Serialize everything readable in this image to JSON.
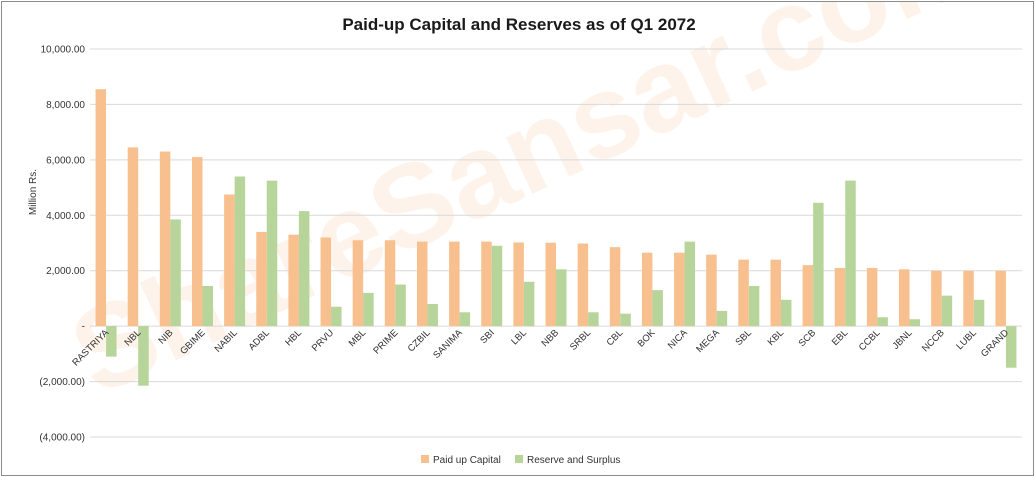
{
  "chart_data": {
    "type": "bar",
    "title": "Paid-up Capital and Reserves  as of Q1 2072",
    "ylabel": "Million Rs.",
    "xlabel": "",
    "ylim": [
      -4000,
      10000
    ],
    "yticks": [
      10000,
      8000,
      6000,
      4000,
      2000,
      0,
      -2000,
      -4000
    ],
    "ytick_labels": [
      "10,000.00",
      "8,000.00",
      "6,000.00",
      "4,000.00",
      "2,000.00",
      "-",
      "(2,000.00)",
      "(4,000.00)"
    ],
    "grid": true,
    "legend_position": "bottom",
    "categories": [
      "RASTRIYA",
      "NBL",
      "NIB",
      "GBIME",
      "NABIL",
      "ADBL",
      "HBL",
      "PRVU",
      "MBL",
      "PRIME",
      "CZBIL",
      "SANIMA",
      "SBI",
      "LBL",
      "NBB",
      "SRBL",
      "CBL",
      "BOK",
      "NICA",
      "MEGA",
      "SBL",
      "KBL",
      "SCB",
      "EBL",
      "CCBL",
      "JBNL",
      "NCCB",
      "LUBL",
      "GRAND"
    ],
    "series": [
      {
        "name": "Paid up Capital",
        "color": "#f8c08e",
        "values": [
          8550,
          6450,
          6300,
          6100,
          4750,
          3400,
          3300,
          3200,
          3100,
          3100,
          3050,
          3050,
          3050,
          3020,
          3010,
          2980,
          2850,
          2650,
          2650,
          2580,
          2400,
          2400,
          2200,
          2100,
          2100,
          2050,
          2000,
          2000,
          2000
        ]
      },
      {
        "name": "Reserve and Surplus",
        "color": "#b7d59a",
        "values": [
          -1100,
          -2150,
          3850,
          1450,
          5400,
          5250,
          4150,
          700,
          1200,
          1500,
          800,
          500,
          2900,
          1600,
          2050,
          500,
          450,
          1300,
          3050,
          550,
          1450,
          950,
          4450,
          5250,
          320,
          250,
          1100,
          950,
          -1500
        ]
      }
    ]
  },
  "watermark": "ShareSansar.com"
}
